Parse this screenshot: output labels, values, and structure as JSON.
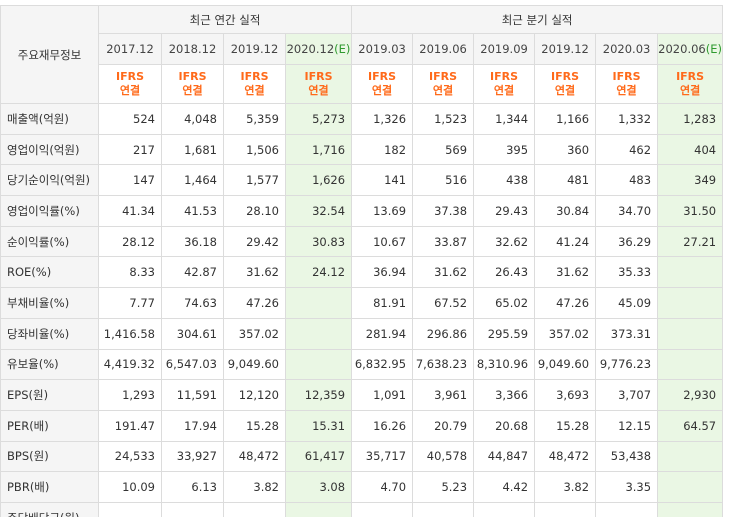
{
  "header": {
    "row_label": "주요재무정보",
    "annual_title": "최근 연간 실적",
    "quarterly_title": "최근 분기 실적",
    "estimate_mark": "(E)",
    "ifrs_top": "IFRS",
    "ifrs_bottom": "연결"
  },
  "periods": [
    {
      "label": "2017.12"
    },
    {
      "label": "2018.12"
    },
    {
      "label": "2019.12"
    },
    {
      "label": "2020.12"
    },
    {
      "label": "2019.03"
    },
    {
      "label": "2019.06"
    },
    {
      "label": "2019.09"
    },
    {
      "label": "2019.12"
    },
    {
      "label": "2020.03"
    },
    {
      "label": "2020.06"
    }
  ],
  "rows": [
    {
      "label": "매출액(억원)",
      "values": [
        "524",
        "4,048",
        "5,359",
        "5,273",
        "1,326",
        "1,523",
        "1,344",
        "1,166",
        "1,332",
        "1,283"
      ]
    },
    {
      "label": "영업이익(억원)",
      "values": [
        "217",
        "1,681",
        "1,506",
        "1,716",
        "182",
        "569",
        "395",
        "360",
        "462",
        "404"
      ]
    },
    {
      "label": "당기순이익(억원)",
      "values": [
        "147",
        "1,464",
        "1,577",
        "1,626",
        "141",
        "516",
        "438",
        "481",
        "483",
        "349"
      ]
    },
    {
      "label": "영업이익률(%)",
      "values": [
        "41.34",
        "41.53",
        "28.10",
        "32.54",
        "13.69",
        "37.38",
        "29.43",
        "30.84",
        "34.70",
        "31.50"
      ]
    },
    {
      "label": "순이익률(%)",
      "values": [
        "28.12",
        "36.18",
        "29.42",
        "30.83",
        "10.67",
        "33.87",
        "32.62",
        "41.24",
        "36.29",
        "27.21"
      ]
    },
    {
      "label": "ROE(%)",
      "values": [
        "8.33",
        "42.87",
        "31.62",
        "24.12",
        "36.94",
        "31.62",
        "26.43",
        "31.62",
        "35.33",
        ""
      ]
    },
    {
      "label": "부채비율(%)",
      "values": [
        "7.77",
        "74.63",
        "47.26",
        "",
        "81.91",
        "67.52",
        "65.02",
        "47.26",
        "45.09",
        ""
      ]
    },
    {
      "label": "당좌비율(%)",
      "values": [
        "1,416.58",
        "304.61",
        "357.02",
        "",
        "281.94",
        "296.86",
        "295.59",
        "357.02",
        "373.31",
        ""
      ]
    },
    {
      "label": "유보율(%)",
      "values": [
        "4,419.32",
        "6,547.03",
        "9,049.60",
        "",
        "6,832.95",
        "7,638.23",
        "8,310.96",
        "9,049.60",
        "9,776.23",
        ""
      ]
    },
    {
      "label": "EPS(원)",
      "values": [
        "1,293",
        "11,591",
        "12,120",
        "12,359",
        "1,091",
        "3,961",
        "3,366",
        "3,693",
        "3,707",
        "2,930"
      ]
    },
    {
      "label": "PER(배)",
      "values": [
        "191.47",
        "17.94",
        "15.28",
        "15.31",
        "16.26",
        "20.79",
        "20.68",
        "15.28",
        "12.15",
        "64.57"
      ]
    },
    {
      "label": "BPS(원)",
      "values": [
        "24,533",
        "33,927",
        "48,472",
        "61,417",
        "35,717",
        "40,578",
        "44,847",
        "48,472",
        "53,438",
        ""
      ]
    },
    {
      "label": "PBR(배)",
      "values": [
        "10.09",
        "6.13",
        "3.82",
        "3.08",
        "4.70",
        "5.23",
        "4.42",
        "3.82",
        "3.35",
        ""
      ]
    },
    {
      "label": "주당배당금(원)",
      "values": [
        "",
        "",
        "",
        "-",
        "",
        "",
        "",
        "",
        "",
        ""
      ]
    }
  ]
}
